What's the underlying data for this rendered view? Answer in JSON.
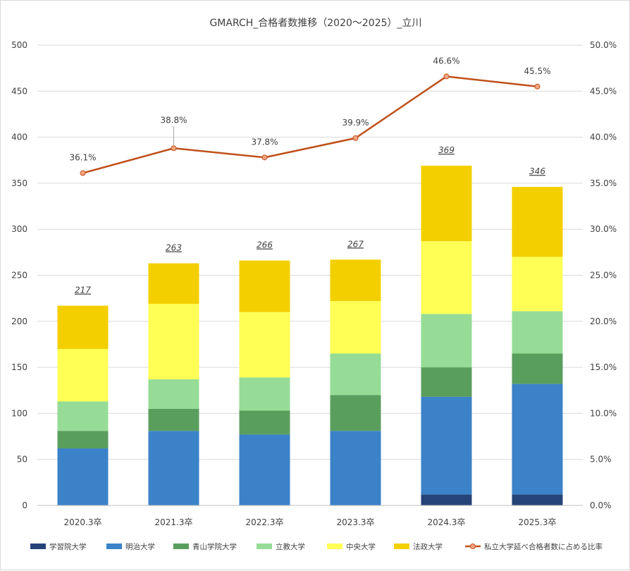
{
  "chart_data": {
    "type": "bar",
    "subtype": "stacked-bar-with-line",
    "title": "GMARCH_合格者数推移（2020～2025）_立川",
    "categories": [
      "2020.3卒",
      "2021.3卒",
      "2022.3卒",
      "2023.3卒",
      "2024.3卒",
      "2025.3卒"
    ],
    "series": [
      {
        "name": "学習院大学",
        "color": "#264478",
        "values": [
          0,
          0,
          0,
          0,
          12,
          12
        ]
      },
      {
        "name": "明治大学",
        "color": "#3b82c8",
        "values": [
          62,
          81,
          77,
          81,
          106,
          120
        ]
      },
      {
        "name": "青山学院大学",
        "color": "#5a9e5e",
        "values": [
          19,
          24,
          26,
          39,
          32,
          33
        ]
      },
      {
        "name": "立教大学",
        "color": "#96dc96",
        "values": [
          32,
          32,
          36,
          45,
          58,
          46
        ]
      },
      {
        "name": "中央大学",
        "color": "#ffff55",
        "values": [
          57,
          82,
          71,
          57,
          79,
          59
        ]
      },
      {
        "name": "法政大学",
        "color": "#f4cf00",
        "values": [
          47,
          44,
          56,
          45,
          82,
          76
        ]
      }
    ],
    "totals": [
      "217",
      "263",
      "266",
      "267",
      "369",
      "346"
    ],
    "line_series": {
      "name": "私立大学延べ合格者数に占める比率",
      "color": "#c0501a",
      "marker_fill": "#f4a582",
      "values": [
        36.1,
        38.8,
        37.8,
        39.9,
        46.6,
        45.5
      ],
      "labels": [
        "36.1%",
        "38.8%",
        "37.8%",
        "39.9%",
        "46.6%",
        "45.5%"
      ]
    },
    "y_left": {
      "min": 0,
      "max": 500,
      "ticks": [
        "0",
        "50",
        "100",
        "150",
        "200",
        "250",
        "300",
        "350",
        "400",
        "450",
        "500"
      ]
    },
    "y_right": {
      "min": 0,
      "max": 50,
      "ticks": [
        "0.0%",
        "5.0%",
        "10.0%",
        "15.0%",
        "20.0%",
        "25.0%",
        "30.0%",
        "35.0%",
        "40.0%",
        "45.0%",
        "50.0%"
      ]
    },
    "grid": true,
    "legend_position": "bottom"
  }
}
